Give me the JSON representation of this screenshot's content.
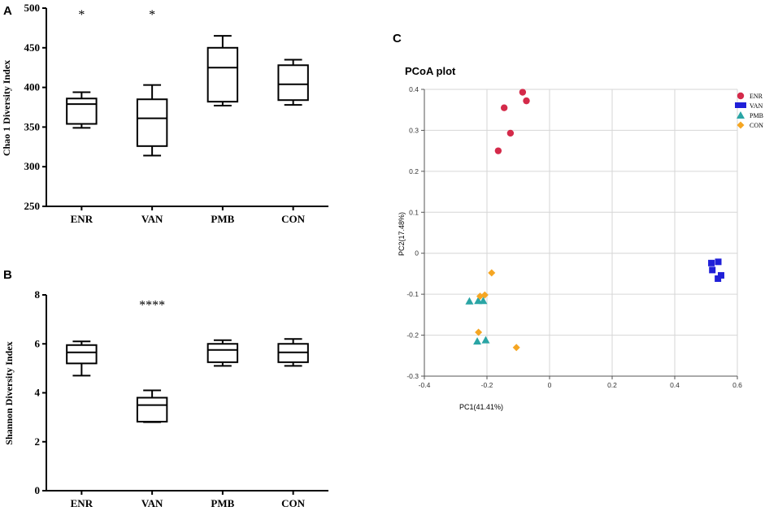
{
  "chart_data": [
    {
      "panel": "A",
      "type": "boxplot",
      "title": "",
      "xlabel": "",
      "ylabel": "Chao 1 Diversity Index",
      "ylim": [
        250,
        500
      ],
      "yticks": [
        250,
        300,
        350,
        400,
        450,
        500
      ],
      "categories": [
        "ENR",
        "VAN",
        "PMB",
        "CON"
      ],
      "boxes": [
        {
          "min": 349,
          "q1": 354,
          "median": 379,
          "q3": 386,
          "max": 394
        },
        {
          "min": 314,
          "q1": 326,
          "median": 361,
          "q3": 385,
          "max": 403
        },
        {
          "min": 377,
          "q1": 382,
          "median": 425,
          "q3": 450,
          "max": 465
        },
        {
          "min": 378,
          "q1": 384,
          "median": 404,
          "q3": 428,
          "max": 435
        }
      ],
      "annotations": [
        {
          "category": "ENR",
          "text": "*",
          "y": 497
        },
        {
          "category": "VAN",
          "text": "*",
          "y": 497
        }
      ]
    },
    {
      "panel": "B",
      "type": "boxplot",
      "title": "",
      "xlabel": "",
      "ylabel": "Shannon Diversity Index",
      "ylim": [
        0,
        8
      ],
      "yticks": [
        0,
        2,
        4,
        6,
        8
      ],
      "categories": [
        "ENR",
        "VAN",
        "PMB",
        "CON"
      ],
      "boxes": [
        {
          "min": 4.7,
          "q1": 5.2,
          "median": 5.65,
          "q3": 5.95,
          "max": 6.1
        },
        {
          "min": 2.8,
          "q1": 2.82,
          "median": 3.5,
          "q3": 3.8,
          "max": 4.1
        },
        {
          "min": 5.1,
          "q1": 5.25,
          "median": 5.75,
          "q3": 6.0,
          "max": 6.15
        },
        {
          "min": 5.1,
          "q1": 5.25,
          "median": 5.65,
          "q3": 6.0,
          "max": 6.2
        }
      ],
      "annotations": [
        {
          "category": "VAN",
          "text": "****",
          "y": 7.75
        }
      ]
    },
    {
      "panel": "C",
      "type": "scatter",
      "title": "PCoA plot",
      "xlabel": "PC1(41.41%)",
      "ylabel": "PC2(17.48%)",
      "xlim": [
        -0.4,
        0.6
      ],
      "ylim": [
        -0.3,
        0.4
      ],
      "xticks": [
        -0.4,
        -0.2,
        0,
        0.2,
        0.4,
        0.6
      ],
      "yticks": [
        -0.3,
        -0.2,
        -0.1,
        0,
        0.1,
        0.2,
        0.3,
        0.4
      ],
      "grid": true,
      "legend": "top-right",
      "series": [
        {
          "name": "ENR",
          "marker": "circle",
          "color": "#d42a4a",
          "points": [
            [
              -0.086,
              0.393
            ],
            [
              -0.074,
              0.372
            ],
            [
              -0.145,
              0.355
            ],
            [
              -0.125,
              0.293
            ],
            [
              -0.164,
              0.25
            ]
          ]
        },
        {
          "name": "VAN",
          "marker": "square",
          "color": "#2020d8",
          "points": [
            [
              0.539,
              -0.021
            ],
            [
              0.517,
              -0.024
            ],
            [
              0.52,
              -0.041
            ],
            [
              0.548,
              -0.054
            ],
            [
              0.538,
              -0.062
            ]
          ]
        },
        {
          "name": "PMB",
          "marker": "triangle",
          "color": "#2aa5a5",
          "points": [
            [
              -0.256,
              -0.117
            ],
            [
              -0.228,
              -0.116
            ],
            [
              -0.212,
              -0.116
            ],
            [
              -0.204,
              -0.212
            ],
            [
              -0.231,
              -0.215
            ]
          ]
        },
        {
          "name": "CON",
          "marker": "diamond",
          "color": "#f5a623",
          "points": [
            [
              -0.185,
              -0.048
            ],
            [
              -0.222,
              -0.105
            ],
            [
              -0.207,
              -0.102
            ],
            [
              -0.227,
              -0.193
            ],
            [
              -0.106,
              -0.23
            ]
          ]
        }
      ]
    }
  ],
  "labels": {
    "panelA": "A",
    "panelB": "B",
    "panelC": "C"
  }
}
